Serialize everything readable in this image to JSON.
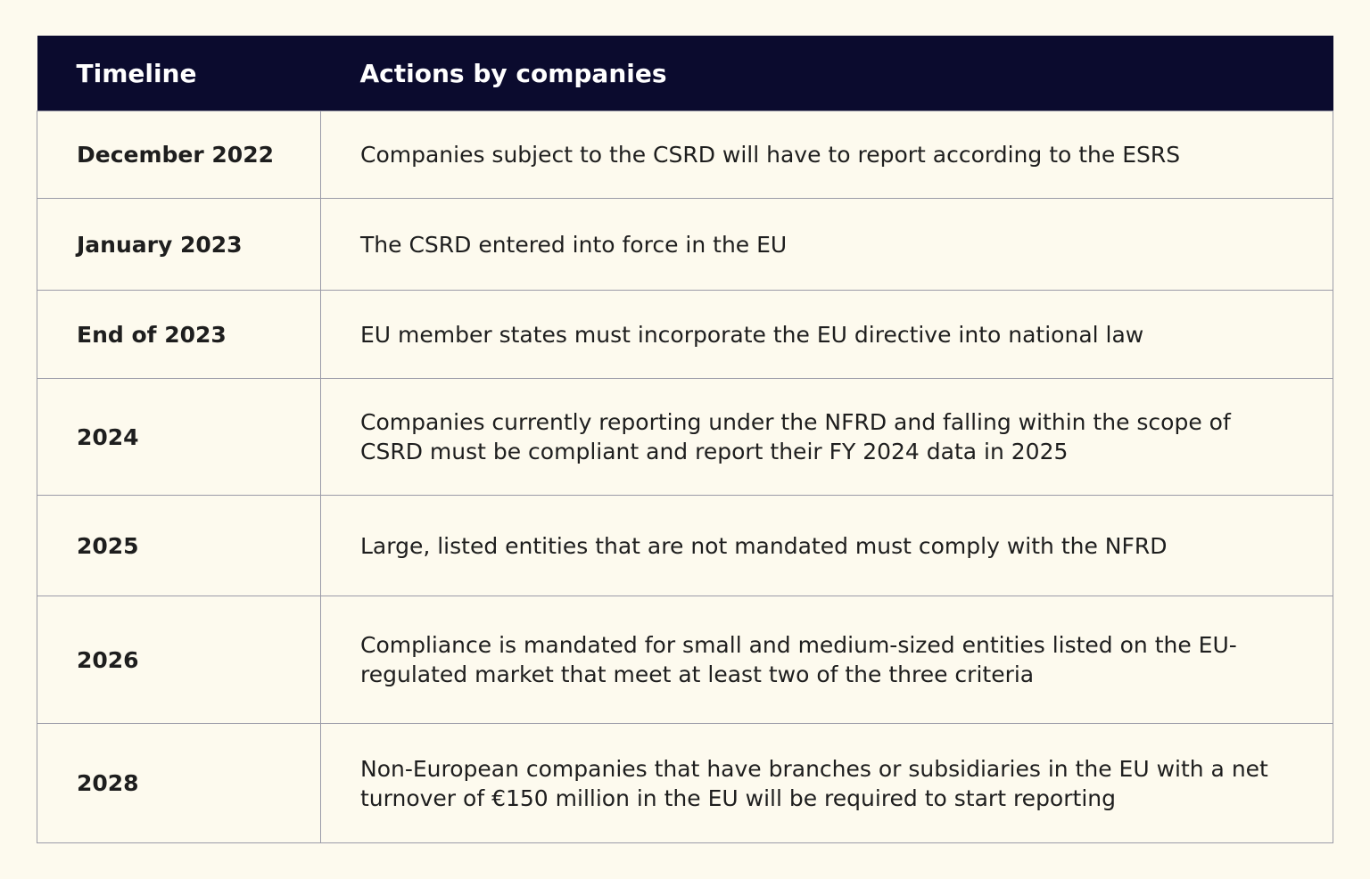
{
  "table": {
    "header": [
      "Timeline",
      "Actions by companies"
    ],
    "rows": [
      [
        "December 2022",
        "Companies subject to the CSRD will have to report according to the ESRS"
      ],
      [
        "January 2023",
        "The CSRD entered into force in the EU"
      ],
      [
        "End of 2023",
        "EU member states must incorporate the EU directive into national law"
      ],
      [
        "2024",
        "Companies currently reporting under the NFRD and falling within the scope of CSRD must be compliant and report their FY 2024 data in 2025"
      ],
      [
        "2025",
        "Large, listed entities that are not mandated must comply with the NFRD"
      ],
      [
        "2026",
        "Compliance is mandated for small and medium-sized entities listed on the EU-regulated market that meet at least two of the three criteria"
      ],
      [
        "2028",
        "Non-European companies that have branches or subsidiaries in the EU with a net turnover of €150 million in the EU will be required to start reporting"
      ]
    ]
  }
}
